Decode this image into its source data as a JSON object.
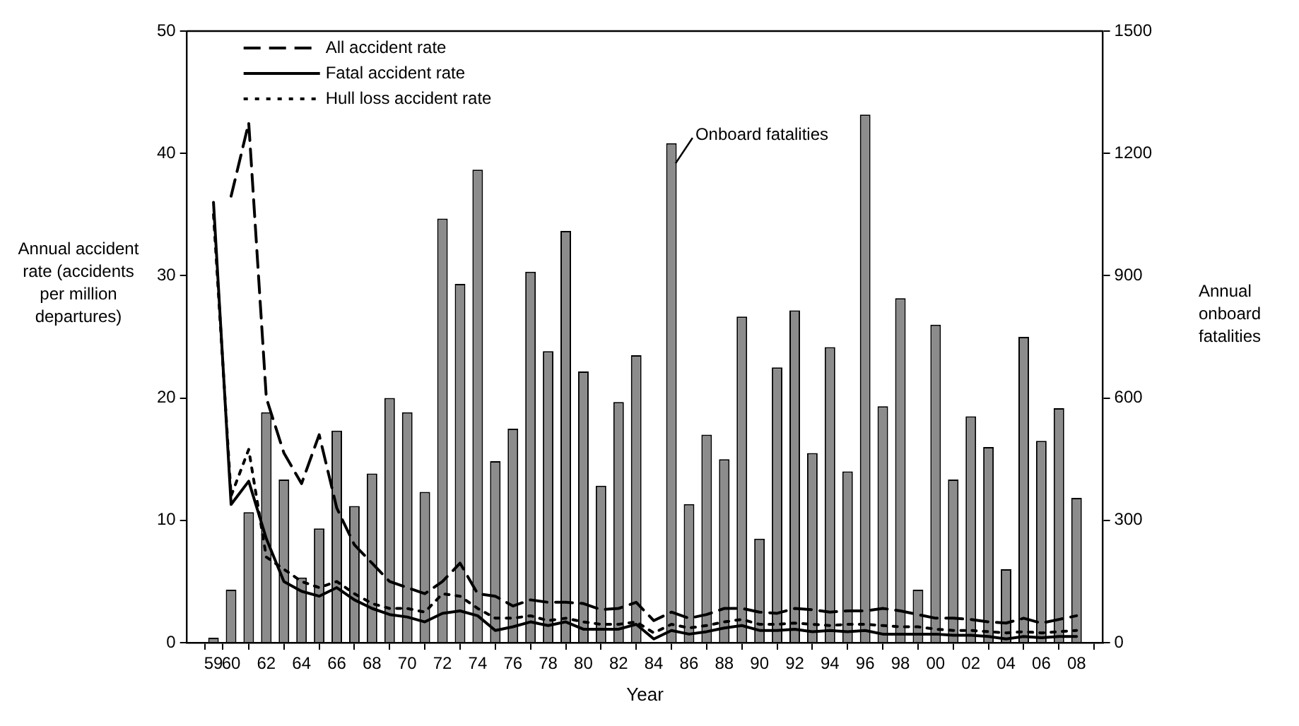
{
  "chart_data": {
    "type": "bar",
    "xlabel": "Year",
    "ylabel": "Annual accident rate (accidents per million departures)",
    "y2label": "Annual onboard fatalities",
    "x": [
      1959,
      1960,
      1961,
      1962,
      1963,
      1964,
      1965,
      1966,
      1967,
      1968,
      1969,
      1970,
      1971,
      1972,
      1973,
      1974,
      1975,
      1976,
      1977,
      1978,
      1979,
      1980,
      1981,
      1982,
      1983,
      1984,
      1985,
      1986,
      1987,
      1988,
      1989,
      1990,
      1991,
      1992,
      1993,
      1994,
      1995,
      1996,
      1997,
      1998,
      1999,
      2000,
      2001,
      2002,
      2003,
      2004,
      2005,
      2006,
      2007,
      2008
    ],
    "xlim": [
      1958.5,
      2008.5
    ],
    "xticks": [
      {
        "value": 1959,
        "label": "59"
      },
      {
        "value": 1960,
        "label": "60"
      },
      {
        "value": 1962,
        "label": "62"
      },
      {
        "value": 1964,
        "label": "64"
      },
      {
        "value": 1966,
        "label": "66"
      },
      {
        "value": 1968,
        "label": "68"
      },
      {
        "value": 1970,
        "label": "70"
      },
      {
        "value": 1972,
        "label": "72"
      },
      {
        "value": 1974,
        "label": "74"
      },
      {
        "value": 1976,
        "label": "76"
      },
      {
        "value": 1978,
        "label": "78"
      },
      {
        "value": 1980,
        "label": "80"
      },
      {
        "value": 1982,
        "label": "82"
      },
      {
        "value": 1984,
        "label": "84"
      },
      {
        "value": 1986,
        "label": "86"
      },
      {
        "value": 1988,
        "label": "88"
      },
      {
        "value": 1990,
        "label": "90"
      },
      {
        "value": 1992,
        "label": "92"
      },
      {
        "value": 1994,
        "label": "94"
      },
      {
        "value": 1996,
        "label": "96"
      },
      {
        "value": 1998,
        "label": "98"
      },
      {
        "value": 2000,
        "label": "00"
      },
      {
        "value": 2002,
        "label": "02"
      },
      {
        "value": 2004,
        "label": "04"
      },
      {
        "value": 2006,
        "label": "06"
      },
      {
        "value": 2008,
        "label": "08"
      }
    ],
    "ylim": [
      0,
      50
    ],
    "yticks": [
      0,
      10,
      20,
      30,
      40,
      50
    ],
    "y2lim": [
      0,
      1500
    ],
    "y2ticks": [
      0,
      300,
      600,
      900,
      1200,
      1500
    ],
    "grid": false,
    "legend": "top left",
    "series": [
      {
        "axis": "y2",
        "color": "#8c8c8c",
        "values": [
          12,
          130,
          320,
          565,
          400,
          160,
          280,
          520,
          335,
          415,
          600,
          565,
          370,
          1040,
          880,
          1160,
          445,
          525,
          910,
          715,
          1010,
          665,
          385,
          590,
          705,
          0,
          1225,
          340,
          510,
          450,
          800,
          255,
          675,
          815,
          465,
          725,
          420,
          1295,
          580,
          845,
          130,
          780,
          400,
          555,
          480,
          180,
          750,
          495,
          575,
          355
        ]
      },
      {
        "type": "line",
        "name": "All accident rate",
        "color": "#000000",
        "line_style": "dashed",
        "values": [
          null,
          36.5,
          42.5,
          20,
          15.5,
          13,
          17,
          11,
          8,
          6.5,
          5,
          4.5,
          4,
          5,
          6.5,
          4,
          3.8,
          3,
          3.5,
          3.3,
          3.3,
          3.2,
          2.7,
          2.8,
          3.3,
          1.8,
          2.5,
          2,
          2.3,
          2.8,
          2.8,
          2.5,
          2.4,
          2.8,
          2.7,
          2.5,
          2.6,
          2.6,
          2.8,
          2.6,
          2.3,
          2,
          2,
          1.9,
          1.7,
          1.6,
          2,
          1.6,
          1.9,
          2.2
        ]
      },
      {
        "type": "line",
        "name": "Fatal accident rate",
        "color": "#000000",
        "line_style": "solid",
        "values": [
          36,
          11.3,
          13.2,
          8.5,
          5,
          4.2,
          3.8,
          4.5,
          3.5,
          2.8,
          2.3,
          2.1,
          1.7,
          2.4,
          2.6,
          2.2,
          1,
          1.3,
          1.7,
          1.4,
          1.7,
          1.1,
          1.1,
          1.1,
          1.5,
          0.3,
          1,
          0.7,
          0.9,
          1.2,
          1.4,
          1,
          1,
          1.1,
          0.9,
          1,
          0.9,
          1,
          0.7,
          0.7,
          0.7,
          0.7,
          0.6,
          0.6,
          0.5,
          0.3,
          0.5,
          0.4,
          0.5,
          0.5
        ]
      },
      {
        "type": "line",
        "name": "Hull loss accident rate",
        "color": "#000000",
        "line_style": "dotted",
        "values": [
          35,
          12,
          15.8,
          7,
          6,
          5,
          4.5,
          5,
          4,
          3.2,
          2.8,
          2.8,
          2.5,
          4,
          3.8,
          2.8,
          2,
          2,
          2.2,
          1.8,
          2,
          1.7,
          1.5,
          1.5,
          1.7,
          0.8,
          1.5,
          1.2,
          1.4,
          1.7,
          1.9,
          1.5,
          1.5,
          1.6,
          1.5,
          1.4,
          1.5,
          1.5,
          1.4,
          1.3,
          1.3,
          1.1,
          1,
          1,
          0.9,
          0.8,
          0.9,
          0.8,
          0.9,
          1
        ]
      }
    ],
    "annotations": [
      "Onboard fatalities"
    ]
  }
}
